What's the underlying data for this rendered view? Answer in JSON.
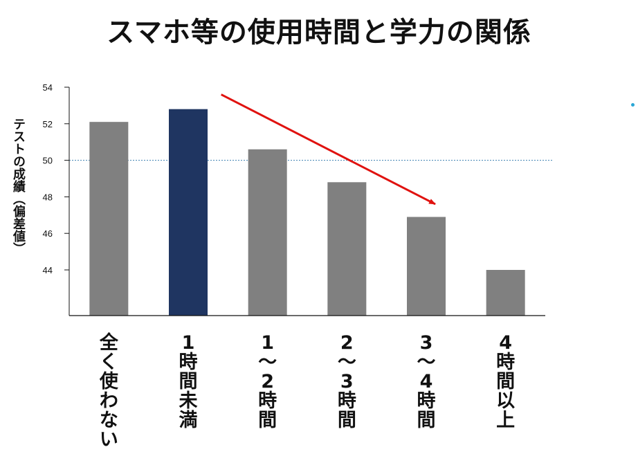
{
  "page": {
    "title": "スマホ等の使用時間と学力の関係"
  },
  "chart_data": {
    "type": "bar",
    "title": "スマホ等の使用時間と学力の関係",
    "xlabel": "",
    "ylabel": "テストの成績（偏差値）",
    "categories": [
      "全く使わない",
      "1時間未満",
      "1〜2時間",
      "2〜3時間",
      "3〜4時間",
      "4時間以上"
    ],
    "category_label_lines": [
      [
        "全",
        "く",
        "使",
        "わ",
        "な",
        "い"
      ],
      [
        "1",
        "時",
        "間",
        "未",
        "満"
      ],
      [
        "1",
        "〜",
        "2",
        "時",
        "間"
      ],
      [
        "2",
        "〜",
        "3",
        "時",
        "間"
      ],
      [
        "3",
        "〜",
        "4",
        "時",
        "間"
      ],
      [
        "4",
        "時",
        "間",
        "以",
        "上"
      ]
    ],
    "values": [
      52.1,
      52.8,
      50.6,
      48.8,
      46.9,
      44.0
    ],
    "bar_colors": [
      "#808080",
      "#1f3561",
      "#808080",
      "#808080",
      "#808080",
      "#808080"
    ],
    "highlight_index": 1,
    "ylim": [
      41.5,
      54
    ],
    "yticks": [
      44,
      46,
      48,
      50,
      52,
      54
    ],
    "reference_line": {
      "value": 50,
      "color": "#3b7fb0",
      "style": "dotted"
    },
    "annotation_arrow": {
      "color": "#e0120f",
      "direction": "downward trend"
    },
    "grid": false,
    "legend": "none"
  }
}
